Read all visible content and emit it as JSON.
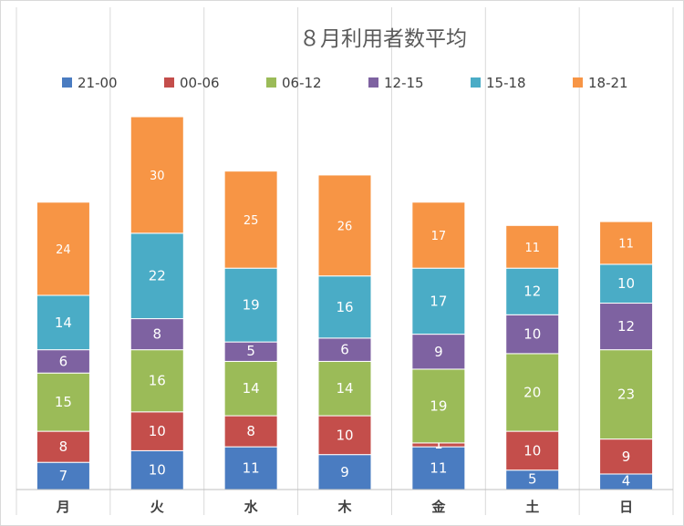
{
  "chart_data": {
    "type": "bar",
    "stacked": true,
    "title": "８月利用者数平均",
    "categories": [
      "月",
      "火",
      "水",
      "木",
      "金",
      "土",
      "日"
    ],
    "series": [
      {
        "name": "21-00",
        "color": "#4a7cc1",
        "values": [
          7,
          10,
          11,
          9,
          11,
          5,
          4
        ]
      },
      {
        "name": "00-06",
        "color": "#c44e4b",
        "values": [
          8,
          10,
          8,
          10,
          1,
          10,
          9
        ]
      },
      {
        "name": "06-12",
        "color": "#9bbb58",
        "values": [
          15,
          16,
          14,
          14,
          19,
          20,
          23
        ]
      },
      {
        "name": "12-15",
        "color": "#7e62a1",
        "values": [
          6,
          8,
          5,
          6,
          9,
          10,
          12
        ]
      },
      {
        "name": "15-18",
        "color": "#4aacc6",
        "values": [
          14,
          22,
          19,
          16,
          17,
          12,
          10
        ]
      },
      {
        "name": "18-21",
        "color": "#f79545",
        "values": [
          24,
          30,
          25,
          26,
          17,
          11,
          11
        ]
      }
    ],
    "legend_position": "top",
    "grid": "vertical",
    "xlabel": "",
    "ylabel": ""
  }
}
